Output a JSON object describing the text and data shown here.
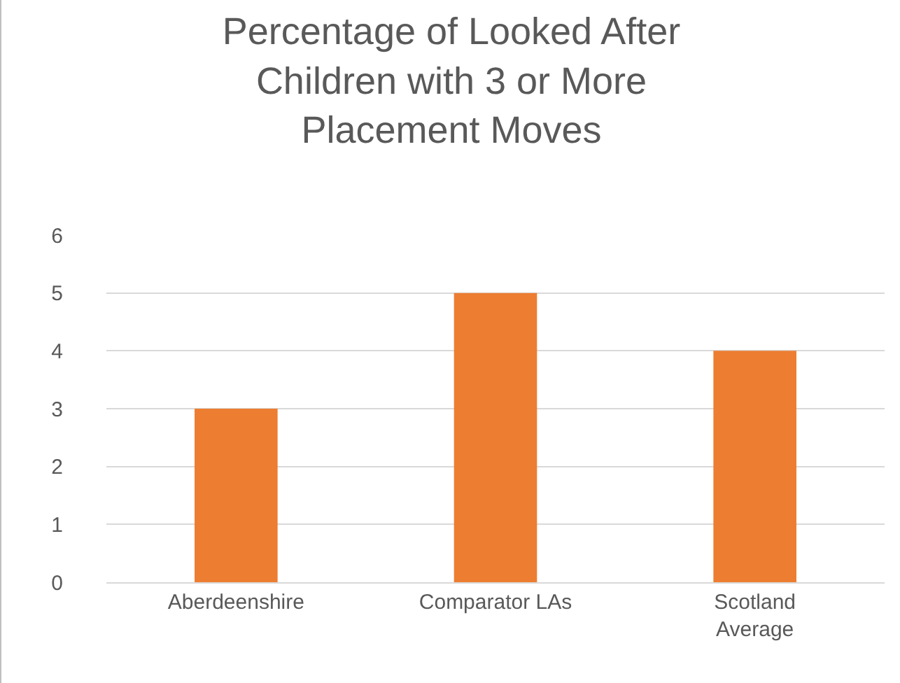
{
  "chart_data": {
    "type": "bar",
    "title": "Percentage of Looked After Children with 3 or More Placement Moves",
    "categories": [
      "Aberdeenshire",
      "Comparator LAs",
      "Scotland Average"
    ],
    "values": [
      3,
      5,
      4
    ],
    "color": "#ed7d31",
    "ylim": [
      0,
      6
    ],
    "yticks": [
      0,
      1,
      2,
      3,
      4,
      5,
      6
    ],
    "grid": "y"
  }
}
